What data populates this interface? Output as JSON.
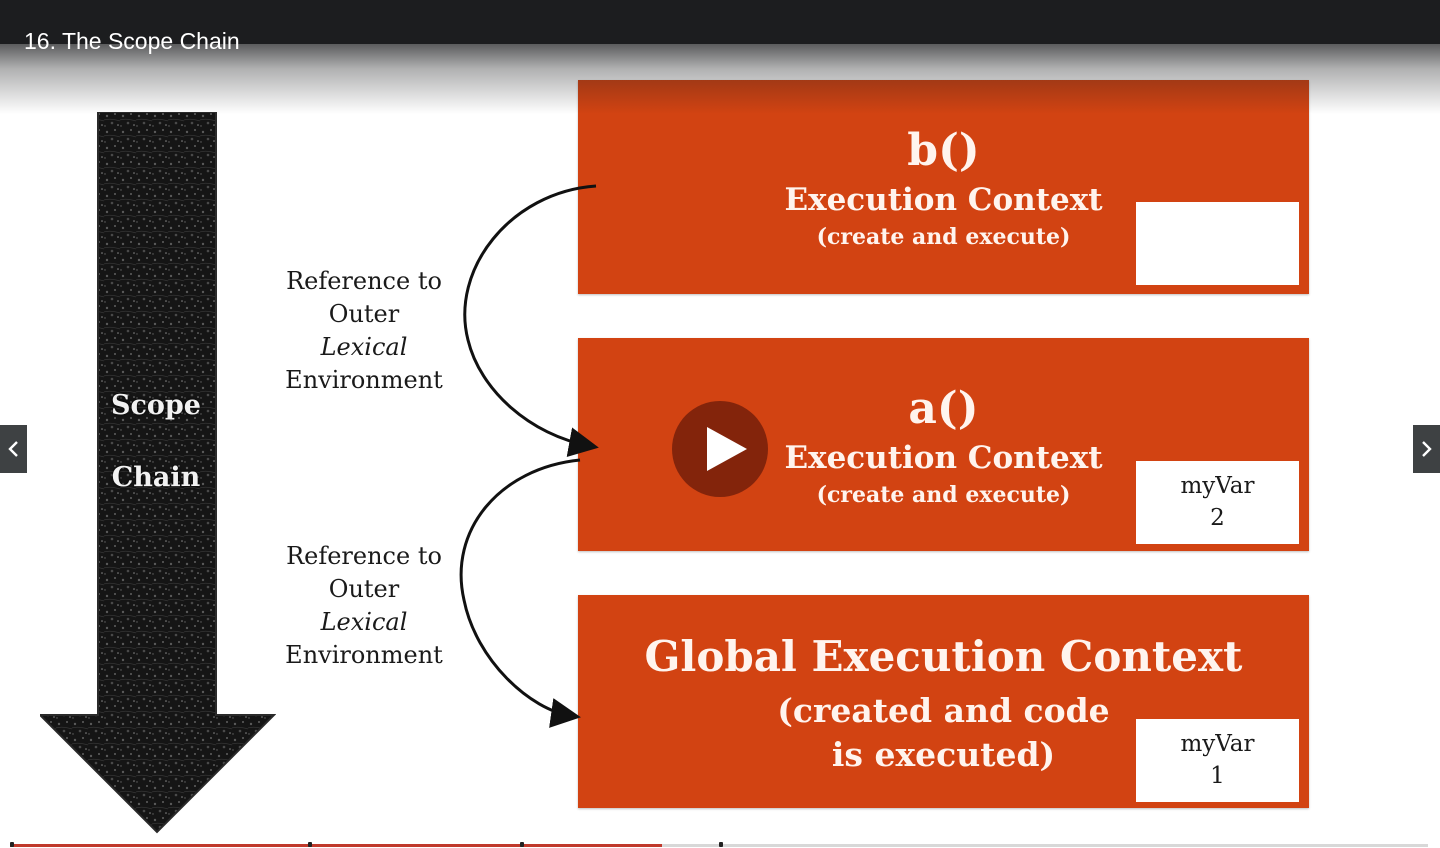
{
  "lecture": {
    "title": "16. The Scope Chain"
  },
  "scope_arrow": {
    "line1": "Scope",
    "line2": "Chain"
  },
  "references": [
    {
      "line1": "Reference to",
      "line2": "Outer",
      "line3": "Lexical",
      "line4": "Environment"
    },
    {
      "line1": "Reference to",
      "line2": "Outer",
      "line3": "Lexical",
      "line4": "Environment"
    }
  ],
  "contexts": {
    "b": {
      "fn": "b()",
      "heading": "Execution Context",
      "sub": "(create and execute)",
      "var_name": "",
      "var_value": ""
    },
    "a": {
      "fn": "a()",
      "heading": "Execution Context",
      "sub": "(create and execute)",
      "var_name": "myVar",
      "var_value": "2"
    },
    "global": {
      "heading": "Global Execution Context",
      "sub_line1": "(created and code",
      "sub_line2": "is executed)",
      "var_name": "myVar",
      "var_value": "1"
    }
  },
  "colors": {
    "context_fill": "#d24312",
    "top_bar": "#1c1d1f",
    "progress_fill": "#c0392b"
  },
  "icons": {
    "play": "play-icon",
    "prev": "chevron-left-icon",
    "next": "chevron-right-icon"
  },
  "player": {
    "progress_fraction": 0.46,
    "marker_fractions": [
      0.0,
      0.21,
      0.36,
      0.5
    ]
  }
}
